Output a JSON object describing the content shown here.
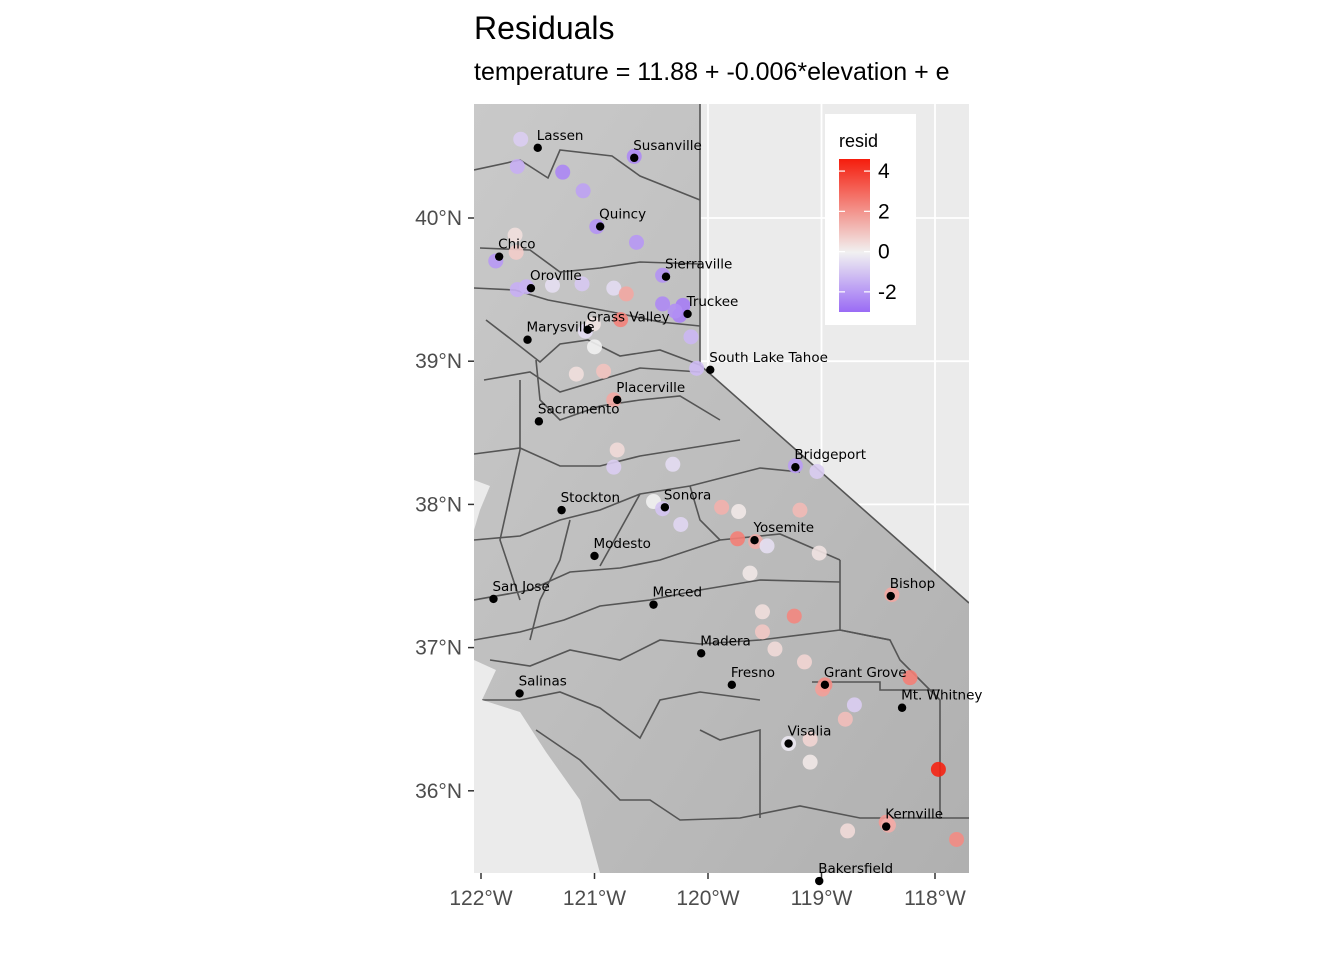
{
  "title": "Residuals",
  "subtitle": "temperature = 11.88 + -0.006*elevation + e",
  "chart_data": {
    "type": "scatter",
    "x_ticks": [
      "122°W",
      "121°W",
      "120°W",
      "119°W",
      "118°W"
    ],
    "y_ticks": [
      "40°N",
      "39°N",
      "38°N",
      "37°N",
      "36°N"
    ],
    "xlim": [
      -122.0,
      -117.6
    ],
    "ylim": [
      35.4,
      40.8
    ],
    "legend": {
      "title": "resid",
      "labels": [
        "4",
        "2",
        "0",
        "-2"
      ],
      "label_values": [
        4,
        2,
        0,
        -2
      ],
      "range": [
        -3.0,
        4.6
      ],
      "color_low": "#9a6bf5",
      "color_mid": "#f1f1f1",
      "color_high": "#f51d0d",
      "position": "top-right"
    },
    "cities": [
      {
        "name": "Lassen",
        "lon": -121.5,
        "lat": 40.49
      },
      {
        "name": "Susanville",
        "lon": -120.65,
        "lat": 40.42
      },
      {
        "name": "Quincy",
        "lon": -120.95,
        "lat": 39.94
      },
      {
        "name": "Chico",
        "lon": -121.84,
        "lat": 39.73
      },
      {
        "name": "Oroville",
        "lon": -121.56,
        "lat": 39.51
      },
      {
        "name": "Sierraville",
        "lon": -120.37,
        "lat": 39.59
      },
      {
        "name": "Truckee",
        "lon": -120.18,
        "lat": 39.33
      },
      {
        "name": "Grass Valley",
        "lon": -121.06,
        "lat": 39.22
      },
      {
        "name": "Marysville",
        "lon": -121.59,
        "lat": 39.15
      },
      {
        "name": "South Lake Tahoe",
        "lon": -119.98,
        "lat": 38.94
      },
      {
        "name": "Placerville",
        "lon": -120.8,
        "lat": 38.73
      },
      {
        "name": "Sacramento",
        "lon": -121.49,
        "lat": 38.58
      },
      {
        "name": "Bridgeport",
        "lon": -119.23,
        "lat": 38.26
      },
      {
        "name": "Stockton",
        "lon": -121.29,
        "lat": 37.96
      },
      {
        "name": "Sonora",
        "lon": -120.38,
        "lat": 37.98
      },
      {
        "name": "Yosemite",
        "lon": -119.59,
        "lat": 37.75
      },
      {
        "name": "Modesto",
        "lon": -121.0,
        "lat": 37.64
      },
      {
        "name": "Merced",
        "lon": -120.48,
        "lat": 37.3
      },
      {
        "name": "Bishop",
        "lon": -118.39,
        "lat": 37.36
      },
      {
        "name": "San Jose",
        "lon": -121.89,
        "lat": 37.34
      },
      {
        "name": "Madera",
        "lon": -120.06,
        "lat": 36.96
      },
      {
        "name": "Fresno",
        "lon": -119.79,
        "lat": 36.74
      },
      {
        "name": "Grant Grove",
        "lon": -118.97,
        "lat": 36.74
      },
      {
        "name": "Salinas",
        "lon": -121.66,
        "lat": 36.68
      },
      {
        "name": "Mt. Whitney",
        "lon": -118.29,
        "lat": 36.58
      },
      {
        "name": "Visalia",
        "lon": -119.29,
        "lat": 36.33
      },
      {
        "name": "Kernville",
        "lon": -118.43,
        "lat": 35.75
      },
      {
        "name": "Bakersfield",
        "lon": -119.02,
        "lat": 35.37
      }
    ],
    "stations": [
      {
        "lon": -121.65,
        "lat": 40.55,
        "resid": -0.8
      },
      {
        "lon": -121.68,
        "lat": 40.36,
        "resid": -1.5
      },
      {
        "lon": -121.28,
        "lat": 40.32,
        "resid": -2.4
      },
      {
        "lon": -121.1,
        "lat": 40.19,
        "resid": -1.8
      },
      {
        "lon": -120.65,
        "lat": 40.43,
        "resid": -2.3
      },
      {
        "lon": -120.98,
        "lat": 39.94,
        "resid": -2.1
      },
      {
        "lon": -120.63,
        "lat": 39.83,
        "resid": -2.0
      },
      {
        "lon": -121.87,
        "lat": 39.7,
        "resid": -2.0
      },
      {
        "lon": -121.7,
        "lat": 39.88,
        "resid": 0.4
      },
      {
        "lon": -121.69,
        "lat": 39.76,
        "resid": 0.8
      },
      {
        "lon": -121.68,
        "lat": 39.5,
        "resid": -1.5
      },
      {
        "lon": -121.6,
        "lat": 39.52,
        "resid": -1.4
      },
      {
        "lon": -121.37,
        "lat": 39.53,
        "resid": -0.4
      },
      {
        "lon": -121.11,
        "lat": 39.54,
        "resid": -0.9
      },
      {
        "lon": -120.83,
        "lat": 39.51,
        "resid": -0.5
      },
      {
        "lon": -120.4,
        "lat": 39.6,
        "resid": -2.1
      },
      {
        "lon": -120.72,
        "lat": 39.47,
        "resid": 1.6
      },
      {
        "lon": -120.4,
        "lat": 39.4,
        "resid": -2.3
      },
      {
        "lon": -120.22,
        "lat": 39.39,
        "resid": -2.6
      },
      {
        "lon": -120.25,
        "lat": 39.32,
        "resid": -2.5
      },
      {
        "lon": -120.29,
        "lat": 39.35,
        "resid": -2.2
      },
      {
        "lon": -120.15,
        "lat": 39.17,
        "resid": -1.3
      },
      {
        "lon": -120.77,
        "lat": 39.29,
        "resid": 2.4
      },
      {
        "lon": -121.08,
        "lat": 39.21,
        "resid": -0.5
      },
      {
        "lon": -121.01,
        "lat": 39.26,
        "resid": 0.3
      },
      {
        "lon": -121.0,
        "lat": 39.1,
        "resid": 0.0
      },
      {
        "lon": -120.92,
        "lat": 38.93,
        "resid": 1.0
      },
      {
        "lon": -121.16,
        "lat": 38.91,
        "resid": 0.4
      },
      {
        "lon": -120.83,
        "lat": 38.73,
        "resid": 1.6
      },
      {
        "lon": -120.1,
        "lat": 38.95,
        "resid": -1.2
      },
      {
        "lon": -120.8,
        "lat": 38.38,
        "resid": 0.5
      },
      {
        "lon": -120.83,
        "lat": 38.26,
        "resid": -0.8
      },
      {
        "lon": -120.31,
        "lat": 38.28,
        "resid": -0.5
      },
      {
        "lon": -119.88,
        "lat": 37.98,
        "resid": 1.4
      },
      {
        "lon": -119.73,
        "lat": 37.95,
        "resid": 0.2
      },
      {
        "lon": -120.48,
        "lat": 38.02,
        "resid": 0.0
      },
      {
        "lon": -120.4,
        "lat": 37.97,
        "resid": -1.0
      },
      {
        "lon": -120.24,
        "lat": 37.86,
        "resid": -0.6
      },
      {
        "lon": -119.74,
        "lat": 37.76,
        "resid": 2.5
      },
      {
        "lon": -119.58,
        "lat": 37.74,
        "resid": 1.5
      },
      {
        "lon": -119.48,
        "lat": 37.71,
        "resid": -0.4
      },
      {
        "lon": -119.23,
        "lat": 38.27,
        "resid": -1.9
      },
      {
        "lon": -119.04,
        "lat": 38.23,
        "resid": -0.8
      },
      {
        "lon": -119.19,
        "lat": 37.96,
        "resid": 1.2
      },
      {
        "lon": -119.02,
        "lat": 37.66,
        "resid": 0.3
      },
      {
        "lon": -119.63,
        "lat": 37.52,
        "resid": 0.2
      },
      {
        "lon": -119.52,
        "lat": 37.25,
        "resid": 0.4
      },
      {
        "lon": -119.24,
        "lat": 37.22,
        "resid": 2.3
      },
      {
        "lon": -119.52,
        "lat": 37.11,
        "resid": 0.9
      },
      {
        "lon": -119.41,
        "lat": 36.99,
        "resid": 0.5
      },
      {
        "lon": -119.15,
        "lat": 36.9,
        "resid": 0.6
      },
      {
        "lon": -118.97,
        "lat": 36.74,
        "resid": 2.2
      },
      {
        "lon": -118.99,
        "lat": 36.71,
        "resid": 1.8
      },
      {
        "lon": -118.71,
        "lat": 36.6,
        "resid": -0.8
      },
      {
        "lon": -118.79,
        "lat": 36.5,
        "resid": 1.1
      },
      {
        "lon": -119.29,
        "lat": 36.33,
        "resid": -0.2
      },
      {
        "lon": -119.1,
        "lat": 36.36,
        "resid": 0.6
      },
      {
        "lon": -119.1,
        "lat": 36.2,
        "resid": 0.2
      },
      {
        "lon": -118.22,
        "lat": 36.79,
        "resid": 2.5
      },
      {
        "lon": -118.38,
        "lat": 37.37,
        "resid": 1.6
      },
      {
        "lon": -117.97,
        "lat": 36.15,
        "resid": 4.5
      },
      {
        "lon": -118.77,
        "lat": 35.72,
        "resid": 0.5
      },
      {
        "lon": -118.43,
        "lat": 35.78,
        "resid": 1.9
      },
      {
        "lon": -118.41,
        "lat": 35.76,
        "resid": 1.5
      },
      {
        "lon": -117.81,
        "lat": 35.66,
        "resid": 2.2
      }
    ]
  }
}
